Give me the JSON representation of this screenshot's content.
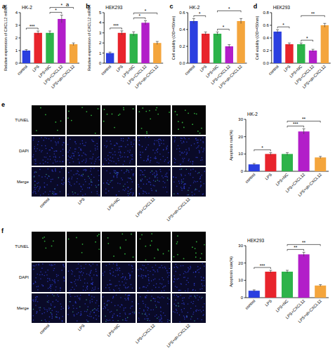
{
  "chart_data": [
    {
      "type": "bar",
      "panel": "a",
      "title": "HK-2",
      "extra_label": "a",
      "y_label": "Relative expression of CXCL12 mRNA",
      "categories": [
        "control",
        "LPS",
        "LPS+NC",
        "LPS+CXCL12",
        "LPS+sh-CXCL12"
      ],
      "values": [
        1,
        2.4,
        2.4,
        3.5,
        1.5
      ],
      "errors": [
        0.08,
        0.15,
        0.15,
        0.3,
        0.1
      ],
      "colors": [
        "#2b3fe0",
        "#e8242c",
        "#2db34a",
        "#b21ec9",
        "#f4a53c"
      ],
      "ylim": [
        0,
        4
      ],
      "yticks": [
        0,
        1,
        2,
        3,
        4
      ],
      "annotations": [
        {
          "between": [
            "control",
            "LPS"
          ],
          "label": "***"
        },
        {
          "between": [
            "LPS+NC",
            "LPS+CXCL12"
          ],
          "label": "*"
        },
        {
          "between": [
            "LPS+NC",
            "LPS+sh-CXCL12"
          ],
          "label": "*"
        }
      ]
    },
    {
      "type": "bar",
      "panel": "b",
      "title": "HEK293",
      "y_label": "Relative expression of CXCL12 mRNA",
      "categories": [
        "control",
        "LPS",
        "LPS+NC",
        "LPS+CXCL12",
        "LPS+sh-CXCL12"
      ],
      "values": [
        1,
        3,
        2.9,
        4,
        2
      ],
      "errors": [
        0.1,
        0.2,
        0.2,
        0.2,
        0.15
      ],
      "colors": [
        "#2b3fe0",
        "#e8242c",
        "#2db34a",
        "#b21ec9",
        "#f4a53c"
      ],
      "ylim": [
        0,
        5
      ],
      "yticks": [
        0,
        1,
        2,
        3,
        4,
        5
      ],
      "annotations": [
        {
          "between": [
            "control",
            "LPS"
          ],
          "label": "***"
        },
        {
          "between": [
            "LPS+NC",
            "LPS+CXCL12"
          ],
          "label": "*"
        },
        {
          "between": [
            "LPS+NC",
            "LPS+sh-CXCL12"
          ],
          "label": "*"
        }
      ]
    },
    {
      "type": "bar",
      "panel": "c",
      "title": "HK-2",
      "y_label": "Cell viability (OD=450nm)",
      "categories": [
        "control",
        "LPS",
        "LPS+NC",
        "LPS+CXCL12",
        "LPS+sh-CXCL12"
      ],
      "values": [
        0.5,
        0.35,
        0.35,
        0.2,
        0.5
      ],
      "errors": [
        0.03,
        0.02,
        0.02,
        0.02,
        0.03
      ],
      "colors": [
        "#2b3fe0",
        "#e8242c",
        "#2db34a",
        "#b21ec9",
        "#f4a53c"
      ],
      "ylim": [
        0,
        0.6
      ],
      "yticks": [
        {
          "value": 0,
          "label": "0.0"
        },
        0.2,
        0.4,
        0.6
      ],
      "annotations": [
        {
          "between": [
            "control",
            "LPS"
          ],
          "label": "*"
        },
        {
          "between": [
            "LPS+NC",
            "LPS+CXCL12"
          ],
          "label": "*"
        },
        {
          "between": [
            "LPS+NC",
            "LPS+sh-CXCL12"
          ],
          "label": "*"
        }
      ]
    },
    {
      "type": "bar",
      "panel": "d",
      "title": "HEK293",
      "y_label": "Cell viability (OD=450nm)",
      "categories": [
        "control",
        "LPS",
        "LPS+NC",
        "LPS+CXCL12",
        "LPS+sh-CXCL12"
      ],
      "values": [
        0.5,
        0.3,
        0.3,
        0.2,
        0.6
      ],
      "errors": [
        0.03,
        0.02,
        0.02,
        0.02,
        0.03
      ],
      "colors": [
        "#2b3fe0",
        "#e8242c",
        "#2db34a",
        "#b21ec9",
        "#f4a53c"
      ],
      "ylim": [
        0,
        0.8
      ],
      "yticks": [
        {
          "value": 0,
          "label": "0.0"
        },
        0.2,
        0.4,
        0.6,
        0.8
      ],
      "annotations": [
        {
          "between": [
            "control",
            "LPS"
          ],
          "label": "*"
        },
        {
          "between": [
            "LPS+NC",
            "LPS+CXCL12"
          ],
          "label": "*"
        },
        {
          "between": [
            "LPS+NC",
            "LPS+sh-CXCL12"
          ],
          "label": "**"
        }
      ]
    },
    {
      "type": "bar",
      "title": "HK-2",
      "y_label": "Apoptosis rate(%)",
      "categories": [
        "control",
        "LPS",
        "LPS+NC",
        "LPS+CXCL12",
        "LPS+sh-CXCL12"
      ],
      "values": [
        4,
        10,
        10,
        23,
        8
      ],
      "errors": [
        0.5,
        0.8,
        0.8,
        1.5,
        0.6
      ],
      "colors": [
        "#2b3fe0",
        "#e8242c",
        "#2db34a",
        "#b21ec9",
        "#f4a53c"
      ],
      "ylim": [
        0,
        30
      ],
      "yticks": [
        0,
        10,
        20,
        30
      ],
      "annotations": [
        {
          "between": [
            "control",
            "LPS"
          ],
          "label": "*"
        },
        {
          "between": [
            "LPS+NC",
            "LPS+CXCL12"
          ],
          "label": "***"
        },
        {
          "between": [
            "LPS+NC",
            "LPS+sh-CXCL12"
          ],
          "label": "**"
        }
      ]
    },
    {
      "type": "bar",
      "title": "HEK293",
      "y_label": "Apoptosis rate(%)",
      "categories": [
        "control",
        "LPS",
        "LPS+NC",
        "LPS+CXCL12",
        "LPS+sh-CXCL12"
      ],
      "values": [
        4,
        15,
        15,
        25,
        7
      ],
      "errors": [
        0.5,
        0.8,
        0.8,
        1.2,
        0.5
      ],
      "colors": [
        "#2b3fe0",
        "#e8242c",
        "#2db34a",
        "#b21ec9",
        "#f4a53c"
      ],
      "ylim": [
        0,
        30
      ],
      "yticks": [
        0,
        10,
        20,
        30
      ],
      "annotations": [
        {
          "between": [
            "control",
            "LPS"
          ],
          "label": "***"
        },
        {
          "between": [
            "LPS+NC",
            "LPS+CXCL12"
          ],
          "label": "**"
        },
        {
          "between": [
            "LPS+NC",
            "LPS+sh-CXCL12"
          ],
          "label": "**"
        }
      ]
    }
  ],
  "micrographs": [
    {
      "panel": "e",
      "rows": [
        "TUNEL",
        "DAPI",
        "Merge"
      ],
      "columns": [
        "control",
        "LPS",
        "LPS+NC",
        "LPS+CXCL12",
        "LPS+sh-CXCL12"
      ]
    },
    {
      "panel": "f",
      "rows": [
        "TUNEL",
        "DAPI",
        "Merge"
      ],
      "columns": [
        "control",
        "LPS",
        "LPS+NC",
        "LPS+CXCL12",
        "LPS+sh-CXCL12"
      ]
    }
  ]
}
